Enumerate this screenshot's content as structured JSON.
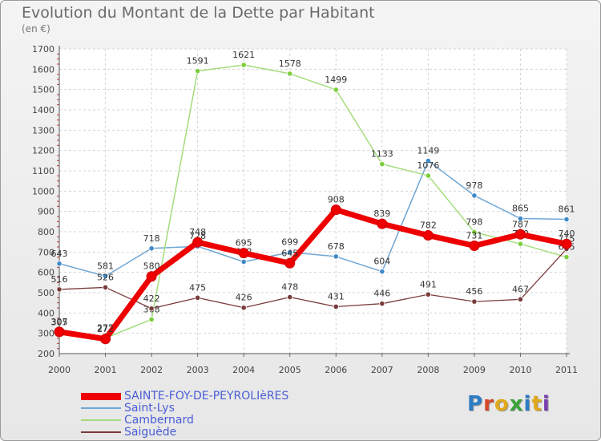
{
  "header": {
    "title": "Evolution du Montant de la Dette par Habitant",
    "subtitle": "(en €)"
  },
  "logo": {
    "text": "Proxiti",
    "colors": [
      "#2e7cc4",
      "#d6482c",
      "#e0a81c",
      "#3aa33a",
      "#2e7cc4",
      "#e0a81c",
      "#7b3fb0"
    ]
  },
  "chart_data": {
    "type": "line",
    "x": [
      "2000",
      "2001",
      "2002",
      "2003",
      "2004",
      "2005",
      "2006",
      "2007",
      "2008",
      "2009",
      "2010",
      "2011"
    ],
    "ylim": [
      200,
      1700
    ],
    "yticks": [
      "200",
      "300",
      "400",
      "500",
      "600",
      "700",
      "800",
      "900",
      "1000",
      "1100",
      "1200",
      "1300",
      "1400",
      "1500",
      "1600",
      "1700"
    ],
    "grid": true,
    "legend_position": "bottom-left",
    "series": [
      {
        "name": "Saint-Lys",
        "color": "#6fa6d4",
        "marker": "#3f8ac9",
        "width": 1.5,
        "values": [
          643,
          581,
          718,
          728,
          652,
          699,
          678,
          604,
          1149,
          978,
          865,
          861
        ],
        "labels": [
          "643",
          "581",
          "718",
          "728",
          "652",
          "699",
          "678",
          "604",
          "1149",
          "978",
          "865",
          "861"
        ]
      },
      {
        "name": "Cambernard",
        "color": "#a4dc7c",
        "marker": "#7ccd3c",
        "width": 1.5,
        "values": [
          305,
          277,
          368,
          1591,
          1621,
          1578,
          1499,
          1133,
          1076,
          798,
          740,
          675
        ],
        "labels": [
          "305",
          "277",
          "368",
          "1591",
          "1621",
          "1578",
          "1499",
          "1133",
          "1076",
          "798",
          "740",
          "675"
        ]
      },
      {
        "name": "Saiguède",
        "color": "#7a3b3b",
        "marker": "#7a3b3b",
        "width": 1.3,
        "values": [
          516,
          526,
          422,
          475,
          426,
          478,
          431,
          446,
          491,
          456,
          467,
          715
        ],
        "labels": [
          "516",
          "526",
          "422",
          "475",
          "426",
          "478",
          "431",
          "446",
          "491",
          "456",
          "467",
          "715"
        ]
      },
      {
        "name": "SAINTE-FOY-DE-PEYROLIèRES",
        "color": "#ee0000",
        "marker": "#ee0000",
        "width": 7,
        "values": [
          307,
          272,
          580,
          748,
          695,
          645,
          908,
          839,
          782,
          731,
          787,
          740
        ],
        "labels": [
          "307",
          "272",
          "580",
          "748",
          "695",
          "645",
          "908",
          "839",
          "782",
          "731",
          "787",
          "740"
        ]
      }
    ],
    "legend": [
      {
        "name": "SAINTE-FOY-DE-PEYROLIèRES",
        "color": "#ee0000",
        "thickness": 9
      },
      {
        "name": "Saint-Lys",
        "color": "#6fa6d4",
        "thickness": 2
      },
      {
        "name": "Cambernard",
        "color": "#a4dc7c",
        "thickness": 2
      },
      {
        "name": "Saiguède",
        "color": "#7a3b3b",
        "thickness": 2
      }
    ]
  }
}
